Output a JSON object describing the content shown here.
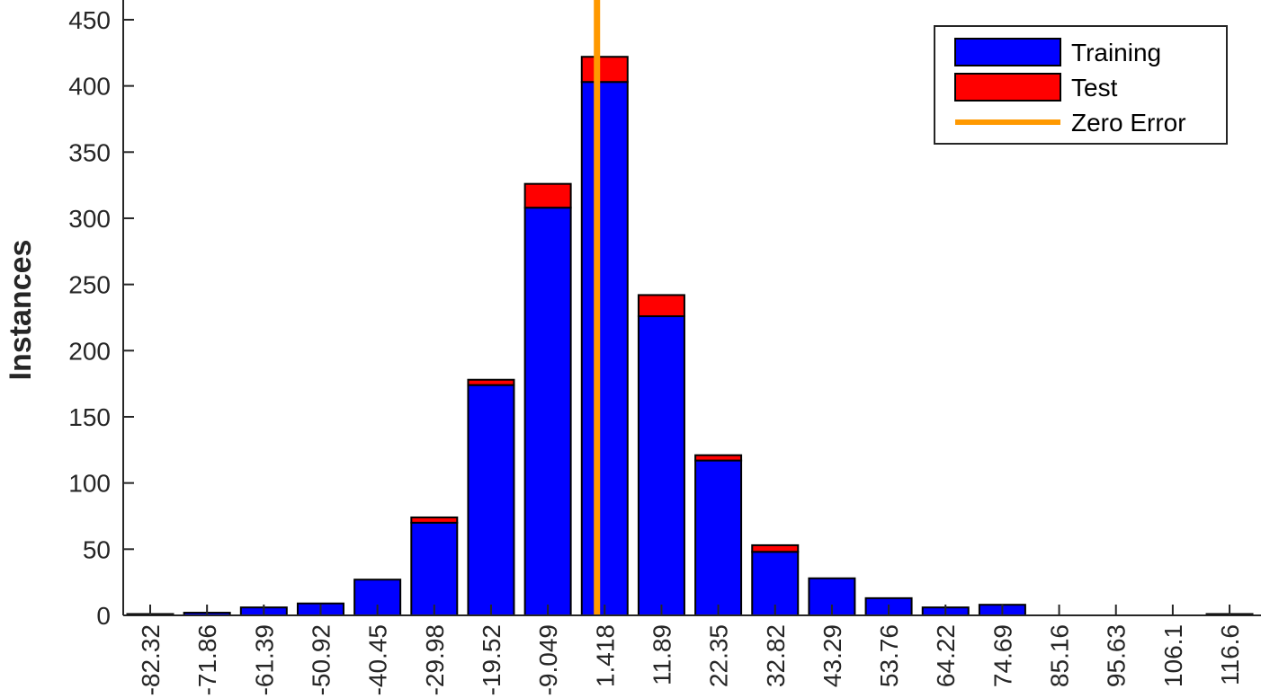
{
  "chart_data": {
    "type": "bar",
    "stacked": true,
    "title": "",
    "xlabel": "",
    "ylabel": "Instances",
    "ylim": [
      0,
      460
    ],
    "yticks": [
      0,
      50,
      100,
      150,
      200,
      250,
      300,
      350,
      400,
      450
    ],
    "categories": [
      "-82.32",
      "-71.86",
      "-61.39",
      "-50.92",
      "-40.45",
      "-29.98",
      "-19.52",
      "-9.049",
      "1.418",
      "11.89",
      "22.35",
      "32.82",
      "43.29",
      "53.76",
      "64.22",
      "74.69",
      "85.16",
      "95.63",
      "106.1",
      "116.6"
    ],
    "series": [
      {
        "name": "Training",
        "color": "#0000ff",
        "values": [
          1,
          2,
          6,
          9,
          27,
          70,
          174,
          308,
          403,
          226,
          117,
          48,
          28,
          13,
          6,
          8,
          0,
          0,
          0,
          1
        ]
      },
      {
        "name": "Test",
        "color": "#ff0000",
        "values": [
          0,
          0,
          0,
          0,
          0,
          4,
          4,
          18,
          19,
          16,
          4,
          5,
          0,
          0,
          0,
          0,
          0,
          0,
          0,
          0
        ]
      }
    ],
    "reference_line": {
      "name": "Zero Error",
      "x": 0,
      "color": "#ff9900"
    },
    "grid": false,
    "legend_position": "top-right"
  }
}
